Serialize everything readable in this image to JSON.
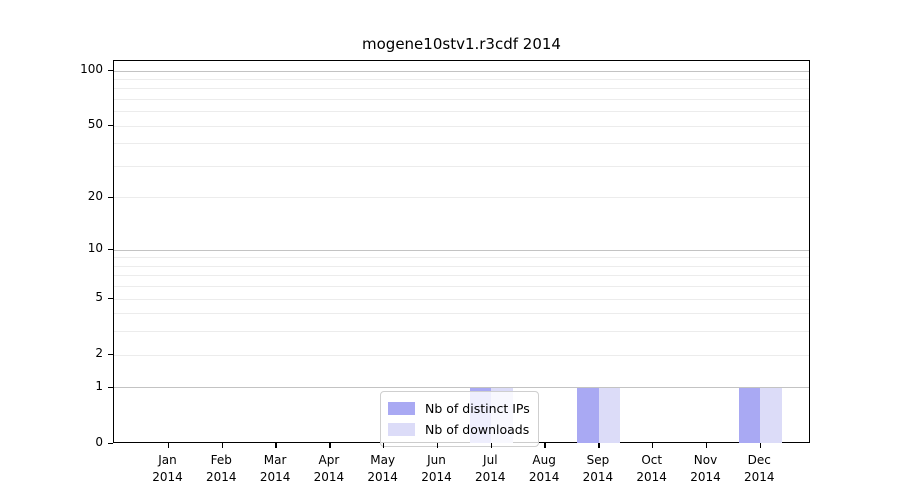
{
  "chart_data": {
    "type": "bar",
    "title": "mogene10stv1.r3cdf 2014",
    "categories": [
      "Jan 2014",
      "Feb 2014",
      "Mar 2014",
      "Apr 2014",
      "May 2014",
      "Jun 2014",
      "Jul 2014",
      "Aug 2014",
      "Sep 2014",
      "Oct 2014",
      "Nov 2014",
      "Dec 2014"
    ],
    "series": [
      {
        "name": "Nb of distinct IPs",
        "color": "#a9a9f3",
        "values": [
          0,
          0,
          0,
          0,
          0,
          0,
          1,
          0,
          1,
          0,
          0,
          1
        ]
      },
      {
        "name": "Nb of downloads",
        "color": "#dcdcf8",
        "values": [
          0,
          0,
          0,
          0,
          0,
          0,
          1,
          0,
          1,
          0,
          0,
          1
        ]
      }
    ],
    "xlabel": "",
    "ylabel": "",
    "yscale": "log1p",
    "ylim": [
      0,
      113
    ],
    "yticks": [
      0,
      1,
      2,
      5,
      10,
      20,
      50,
      100
    ],
    "grid": {
      "major": [
        1,
        10,
        100
      ],
      "minor": [
        2,
        3,
        4,
        5,
        6,
        7,
        8,
        9,
        20,
        30,
        40,
        50,
        60,
        70,
        80,
        90
      ]
    },
    "legend": {
      "position": "bottom-center",
      "entries": [
        "Nb of distinct IPs",
        "Nb of downloads"
      ]
    },
    "colors": {
      "grid_major": "#c3c3c3",
      "grid_minor": "#ececec",
      "spine": "#000000",
      "legend_border": "#cfcfcf",
      "text": "#000000"
    }
  }
}
